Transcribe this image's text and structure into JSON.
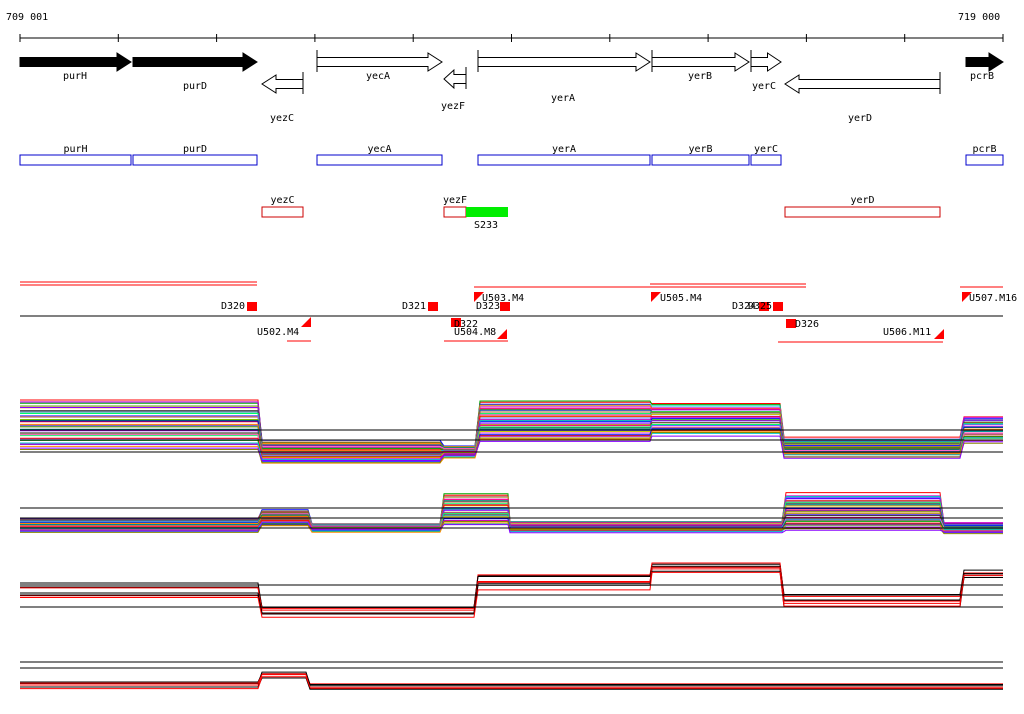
{
  "coordinates": {
    "start": "709 001",
    "end": "719 000"
  },
  "colors": {
    "annotation": "#000000",
    "cds_box": "#0000cc",
    "ncrna_box": "#cc0000",
    "ncrna_new": "#00ee00",
    "feature": "#ff0000"
  },
  "genes": [
    {
      "name": "purH",
      "strand": "+",
      "filled": true
    },
    {
      "name": "purD",
      "strand": "+",
      "filled": true
    },
    {
      "name": "yezC",
      "strand": "-",
      "filled": false
    },
    {
      "name": "yecA",
      "strand": "+",
      "filled": false
    },
    {
      "name": "yezF",
      "strand": "-",
      "filled": false
    },
    {
      "name": "yerA",
      "strand": "+",
      "filled": false
    },
    {
      "name": "yerB",
      "strand": "+",
      "filled": false
    },
    {
      "name": "yerC",
      "strand": "+",
      "filled": false
    },
    {
      "name": "yerD",
      "strand": "-",
      "filled": false
    },
    {
      "name": "pcrB",
      "strand": "+",
      "filled": true
    }
  ],
  "cds_boxes": [
    "purH",
    "purD",
    "yecA",
    "yerA",
    "yerB",
    "yerC",
    "pcrB"
  ],
  "minus_boxes": [
    "yezC",
    "yezF",
    "yerD"
  ],
  "new_rna": {
    "name": "S233"
  },
  "features": {
    "downshifts": [
      "D320",
      "D321",
      "D322",
      "D323",
      "D324",
      "D325",
      "D326"
    ],
    "upshifts": [
      "U502.M4",
      "U503.M4",
      "U504.M8",
      "U505.M4",
      "U506.M11",
      "U507.M16"
    ]
  },
  "tracks": {
    "plus_all": "all conditions, + strand",
    "minus_all": "all conditions, - strand",
    "plus_selected": "selected conditions, + strand",
    "minus_selected": "selected conditions, - strand"
  }
}
